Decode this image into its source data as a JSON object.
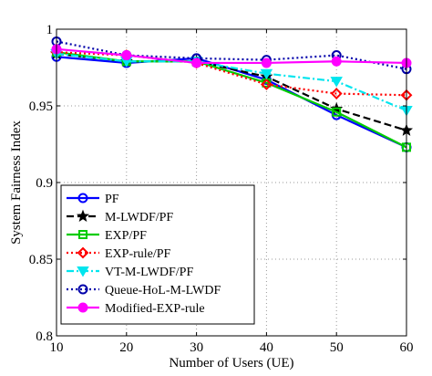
{
  "chart_data": {
    "type": "line",
    "xlabel": "Number of Users (UE)",
    "ylabel": "System Fairness Index",
    "x": [
      10,
      20,
      30,
      40,
      50,
      60
    ],
    "xlim": [
      10,
      60
    ],
    "ylim": [
      0.8,
      1.0
    ],
    "xticks": [
      10,
      20,
      30,
      40,
      50,
      60
    ],
    "yticks": [
      0.8,
      0.85,
      0.9,
      0.95,
      1.0
    ],
    "ytick_labels": [
      "0.8",
      "0.85",
      "0.9",
      "0.95",
      "1"
    ],
    "grid": true,
    "legend_position": "bottom-left",
    "series": [
      {
        "name": "PF",
        "values": [
          0.982,
          0.978,
          0.981,
          0.967,
          0.944,
          0.923
        ],
        "color": "#0000ff",
        "dash": "solid",
        "marker": "circle-open"
      },
      {
        "name": "M-LWDF/PF",
        "values": [
          0.984,
          0.979,
          0.979,
          0.969,
          0.948,
          0.934
        ],
        "color": "#000000",
        "dash": "dashed",
        "marker": "star"
      },
      {
        "name": "EXP/PF",
        "values": [
          0.985,
          0.979,
          0.979,
          0.965,
          0.946,
          0.923
        ],
        "color": "#00cc00",
        "dash": "solid",
        "marker": "square-open"
      },
      {
        "name": "EXP-rule/PF",
        "values": [
          0.985,
          0.983,
          0.978,
          0.964,
          0.958,
          0.957
        ],
        "color": "#ff0000",
        "dash": "dotted",
        "marker": "diamond-open"
      },
      {
        "name": "VT-M-LWDF/PF",
        "values": [
          0.984,
          0.979,
          0.979,
          0.971,
          0.966,
          0.947
        ],
        "color": "#00e5ee",
        "dash": "dashdot",
        "marker": "triangle"
      },
      {
        "name": "Queue-HoL-M-LWDF",
        "values": [
          0.992,
          0.983,
          0.981,
          0.98,
          0.983,
          0.974
        ],
        "color": "#0000aa",
        "dash": "dotted",
        "marker": "circle-open"
      },
      {
        "name": "Modified-EXP-rule",
        "values": [
          0.987,
          0.983,
          0.978,
          0.978,
          0.979,
          0.978
        ],
        "color": "#ff00ff",
        "dash": "solid",
        "marker": "circle-filled"
      }
    ]
  }
}
